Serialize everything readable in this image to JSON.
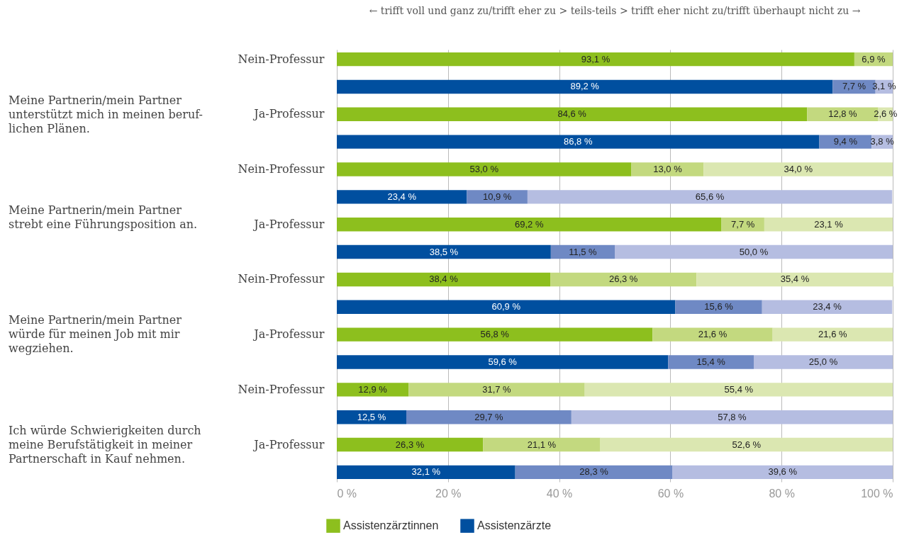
{
  "chart_data": {
    "type": "bar",
    "orientation": "horizontal",
    "stacked": true,
    "title": "←  trifft voll und ganz zu/trifft eher zu > teils-teils > trifft eher nicht zu/trifft überhaupt nicht zu  →",
    "annotations": [
      "Meine Partnerin/mein Partner\nunterstützt mich in meinen beruf-\nlichen Plänen.",
      "Meine Partnerin/mein Partner\nstrebt eine Führungsposition an.",
      "Meine Partnerin/mein Partner\nwürde für meinen Job mit mir\nwegziehen.",
      "Ich würde Schwierigkeiten durch\nmeine Berufstätigkeit in meiner\nPartnerschaft in Kauf nehmen."
    ],
    "categories": [
      "Nein-Professur",
      null,
      "Ja-Professur",
      null,
      "Nein-Professur",
      null,
      "Ja-Professur",
      null,
      "Nein-Professur",
      null,
      "Ja-Professur",
      null,
      "Nein-Professur",
      null,
      "Ja-Professur",
      null
    ],
    "series": [
      {
        "name": "Assistenzärztinnen",
        "color": "#8dbf1e",
        "values": [
          93.1,
          null,
          84.6,
          null,
          53.0,
          null,
          69.2,
          null,
          38.4,
          null,
          56.8,
          null,
          12.9,
          null,
          26.3,
          null
        ],
        "value_labels": [
          "93,1 %",
          null,
          "84,6 %",
          null,
          "53,0 %",
          null,
          "69,2 %",
          null,
          "38,4 %",
          null,
          "56,8 %",
          null,
          "12,9 %",
          null,
          "26,3 %",
          null
        ]
      },
      {
        "color": "#c3d97f",
        "values": [
          6.9,
          null,
          12.8,
          null,
          13.0,
          null,
          7.7,
          null,
          26.3,
          null,
          21.6,
          null,
          31.7,
          null,
          21.1,
          null
        ],
        "value_labels": [
          "6,9 %",
          null,
          "12,8 %",
          null,
          "13,0 %",
          null,
          "7,7 %",
          null,
          "26,3 %",
          null,
          "21,6 %",
          null,
          "31,7 %",
          null,
          "21,1 %",
          null
        ]
      },
      {
        "color": "#dbe7b1",
        "values": [
          null,
          null,
          2.6,
          null,
          34.0,
          null,
          23.1,
          null,
          35.4,
          null,
          21.6,
          null,
          55.4,
          null,
          52.6,
          null
        ],
        "value_labels": [
          null,
          null,
          "2,6 %",
          null,
          "34,0 %",
          null,
          "23,1 %",
          null,
          "35,4 %",
          null,
          "21,6 %",
          null,
          "55,4 %",
          null,
          "52,6 %",
          null
        ]
      },
      {
        "name": "Assistenzärzte",
        "color": "#004f9f",
        "values": [
          null,
          89.2,
          null,
          86.8,
          null,
          23.4,
          null,
          38.5,
          null,
          60.9,
          null,
          59.6,
          null,
          12.5,
          null,
          32.1
        ],
        "value_labels": [
          null,
          "89,2 %",
          null,
          "86,8 %",
          null,
          "23,4 %",
          null,
          "38,5 %",
          null,
          "60,9 %",
          null,
          "59,6 %",
          null,
          "12,5 %",
          null,
          "32,1 %"
        ]
      },
      {
        "color": "#6f89c4",
        "values": [
          null,
          7.7,
          null,
          9.4,
          null,
          10.9,
          null,
          11.5,
          null,
          15.6,
          null,
          15.4,
          null,
          29.7,
          null,
          28.3
        ],
        "value_labels": [
          null,
          "7,7 %",
          null,
          "9,4 %",
          null,
          "10,9 %",
          null,
          "11,5 %",
          null,
          "15,6 %",
          null,
          "15,4 %",
          null,
          "29,7 %",
          null,
          "28,3 %"
        ]
      },
      {
        "color": "#b5bde1",
        "values": [
          null,
          3.1,
          null,
          3.8,
          null,
          65.6,
          null,
          50.0,
          null,
          23.4,
          null,
          25.0,
          null,
          57.8,
          null,
          39.6
        ],
        "value_labels": [
          null,
          "3,1 %",
          null,
          "3,8 %",
          null,
          "65,6 %",
          null,
          "50,0 %",
          null,
          "23,4 %",
          null,
          "25,0 %",
          null,
          "57,8 %",
          null,
          "39,6 %"
        ]
      }
    ],
    "xlim": [
      0,
      100
    ],
    "xticks": [
      {
        "value": 0,
        "label": "0 %"
      },
      {
        "value": 20,
        "label": "20 %"
      },
      {
        "value": 40,
        "label": "40 %"
      },
      {
        "value": 60,
        "label": "60 %"
      },
      {
        "value": 80,
        "label": "80 %"
      },
      {
        "value": 100,
        "label": "100 %"
      }
    ],
    "grid": "x",
    "legend": "bottom"
  }
}
